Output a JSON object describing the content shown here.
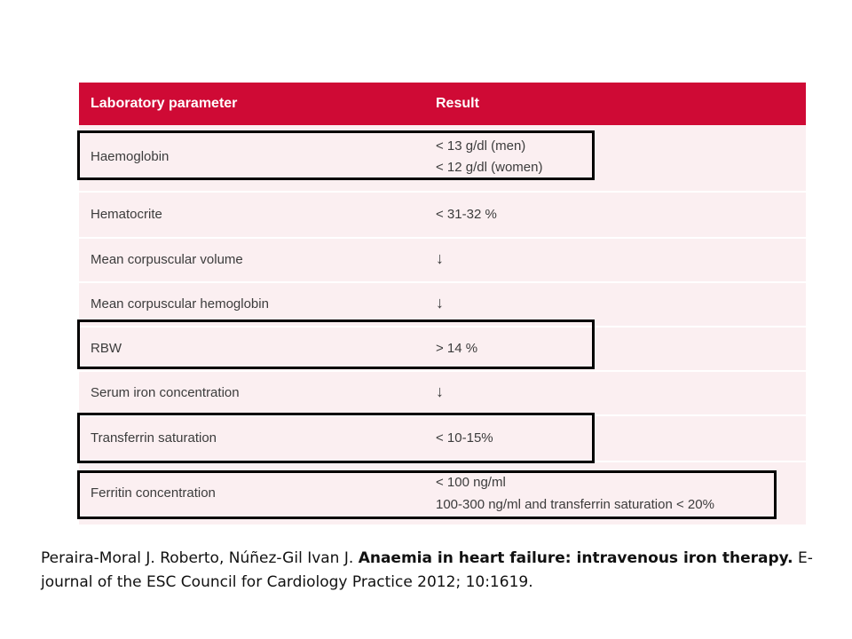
{
  "table": {
    "header": {
      "parameter": "Laboratory parameter",
      "result": "Result"
    },
    "rows": [
      {
        "parameter": "Haemoglobin",
        "result_lines": [
          "< 13 g/dl (men)",
          "< 12 g/dl (women)"
        ],
        "highlighted": true
      },
      {
        "parameter": "Hematocrite",
        "result_lines": [
          "< 31-32 %"
        ],
        "highlighted": false
      },
      {
        "parameter": "Mean corpuscular volume",
        "result_lines": [
          "↓"
        ],
        "highlighted": false
      },
      {
        "parameter": "Mean corpuscular hemoglobin",
        "result_lines": [
          "↓"
        ],
        "highlighted": false
      },
      {
        "parameter": "RBW",
        "result_lines": [
          "> 14 %"
        ],
        "highlighted": true
      },
      {
        "parameter": "Serum iron concentration",
        "result_lines": [
          "↓"
        ],
        "highlighted": false
      },
      {
        "parameter": "Transferrin saturation",
        "result_lines": [
          "< 10-15%"
        ],
        "highlighted": true
      },
      {
        "parameter": "Ferritin concentration",
        "result_lines": [
          "< 100 ng/ml",
          "100-300 ng/ml and transferrin saturation < 20%"
        ],
        "highlighted": true
      }
    ],
    "colors": {
      "header_bg": "#cf0a35",
      "row_bg": "#fbeff1",
      "highlight_border": "#000000"
    }
  },
  "citation": {
    "authors": "Peraira-Moral J. Roberto, Núñez-Gil Ivan J. ",
    "title": "Anaemia in heart failure: intravenous iron therapy.",
    "source": " E-journal of the ESC Council for Cardiology Practice 2012; 10:1619."
  }
}
